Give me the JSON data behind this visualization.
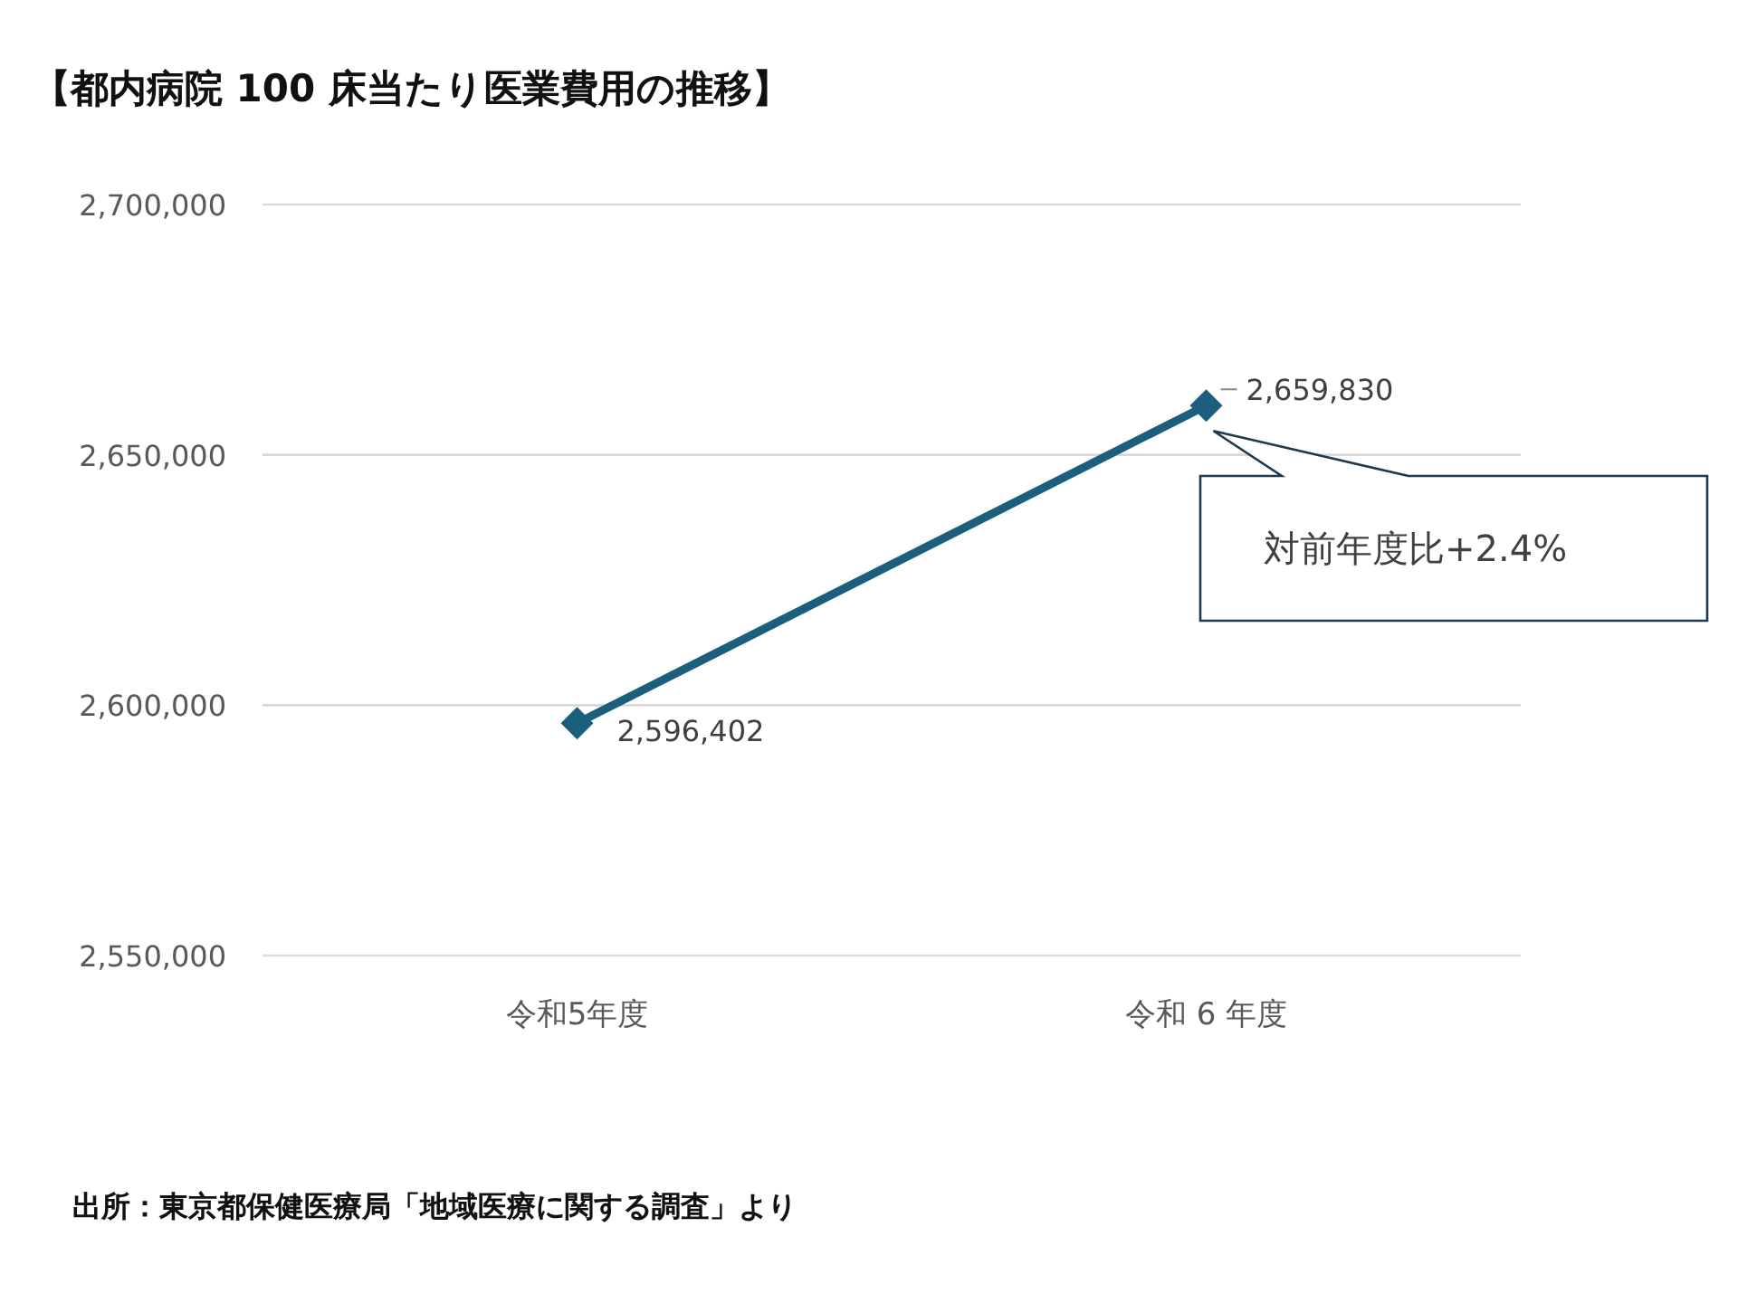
{
  "chart_data": {
    "type": "line",
    "title": "【都内病院 100 床当たり医業費用の推移】",
    "categories": [
      "令和5年度",
      "令和 6 年度"
    ],
    "series": [
      {
        "color": "#1b5e7e",
        "values": [
          2596402,
          2659830
        ],
        "value_labels": [
          "2,596,402",
          "2,659,830"
        ]
      }
    ],
    "ylim": [
      2550000,
      2700000
    ],
    "yticks": [
      {
        "value": 2550000,
        "label": "2,550,000"
      },
      {
        "value": 2600000,
        "label": "2,600,000"
      },
      {
        "value": 2650000,
        "label": "2,650,000"
      },
      {
        "value": 2700000,
        "label": "2,700,000"
      }
    ],
    "grid": "y",
    "marker": "diamond",
    "line_style": "solid",
    "annotations": [
      "対前年度比+2.4%",
      "出所：東京都保健医療局「地域医療に関する調査」より"
    ]
  }
}
